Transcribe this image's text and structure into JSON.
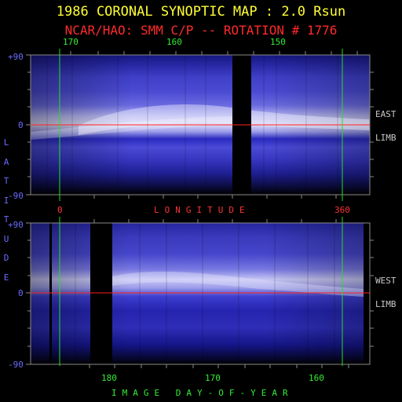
{
  "header": {
    "title": "1986 CORONAL SYNOPTIC MAP : 2.0 Rsun",
    "subtitle": "NCAR/HAO: SMM C/P -- ROTATION # 1776"
  },
  "top_panel": {
    "carrington_labels": [
      "170",
      "160",
      "150"
    ],
    "lat_labels": [
      "+90",
      "0",
      "-90"
    ],
    "limb_label_1": "EAST",
    "limb_label_2": "LIMB"
  },
  "longitude_axis": {
    "start": "0",
    "name": "LONGITUDE",
    "end": "360"
  },
  "latitude_axis": {
    "name": "LATITUDE"
  },
  "bottom_panel": {
    "lat_labels": [
      "+90",
      "0",
      "-90"
    ],
    "limb_label_1": "WEST",
    "limb_label_2": "LIMB",
    "day_labels": [
      "180",
      "170",
      "160"
    ]
  },
  "day_axis": {
    "name": "IMAGE DAY-OF-YEAR"
  },
  "colors": {
    "background": "#000000",
    "frame": "#8a8a8a",
    "equator_line": "#ff2020",
    "boundary_line": "#20e020",
    "corona_dark": "#1a1a8c",
    "corona_bright": "#e6e6ff"
  }
}
